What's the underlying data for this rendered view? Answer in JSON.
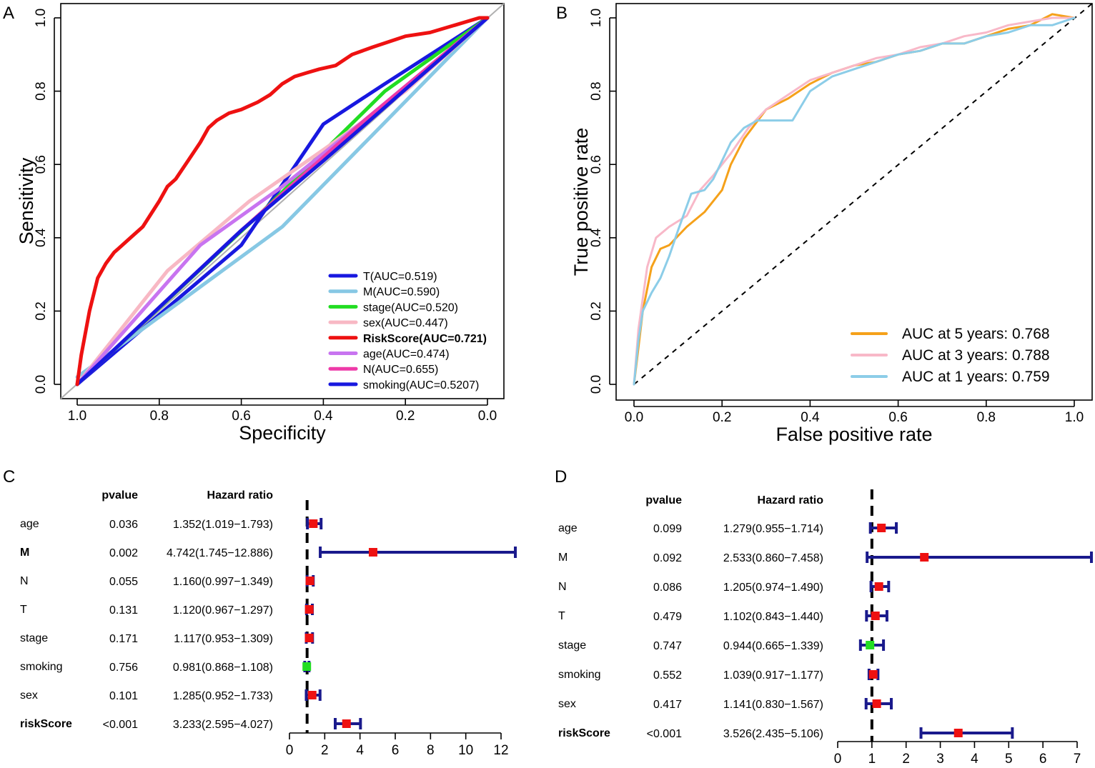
{
  "panels": {
    "A": {
      "letter": "A"
    },
    "B": {
      "letter": "B"
    },
    "C": {
      "letter": "C"
    },
    "D": {
      "letter": "D"
    }
  },
  "chart_data": [
    {
      "id": "A",
      "type": "line",
      "xlabel": "Specificity",
      "ylabel": "Sensitivity",
      "xlim": [
        1.0,
        0.0
      ],
      "ylim": [
        0.0,
        1.0
      ],
      "xticks": [
        "1.0",
        "0.8",
        "0.6",
        "0.4",
        "0.2",
        "0.0"
      ],
      "yticks": [
        "0.0",
        "0.2",
        "0.4",
        "0.6",
        "0.8",
        "1.0"
      ],
      "legend_position": "bottom-right",
      "series": [
        {
          "name": "T(AUC=0.519)",
          "color": "#1818e0",
          "bold": false,
          "x": [
            1.0,
            0.6,
            0.4,
            0.25,
            0.0
          ],
          "y": [
            0.0,
            0.38,
            0.71,
            0.82,
            1.0
          ]
        },
        {
          "name": "M(AUC=0.590)",
          "color": "#87c8e4",
          "bold": false,
          "x": [
            1.0,
            0.5,
            0.0
          ],
          "y": [
            0.02,
            0.43,
            1.0
          ]
        },
        {
          "name": "stage(AUC=0.520)",
          "color": "#22dd22",
          "bold": false,
          "x": [
            1.0,
            0.55,
            0.25,
            0.0
          ],
          "y": [
            0.0,
            0.47,
            0.8,
            1.0
          ]
        },
        {
          "name": "sex(AUC=0.447)",
          "color": "#f8b8c4",
          "bold": false,
          "x": [
            1.0,
            0.78,
            0.58,
            0.4,
            0.2,
            0.0
          ],
          "y": [
            0.0,
            0.31,
            0.5,
            0.64,
            0.8,
            1.0
          ]
        },
        {
          "name": "RiskScore(AUC=0.721)",
          "color": "#ee1111",
          "bold": true,
          "x": [
            1.0,
            0.99,
            0.97,
            0.95,
            0.93,
            0.91,
            0.9,
            0.87,
            0.84,
            0.8,
            0.78,
            0.76,
            0.73,
            0.7,
            0.68,
            0.66,
            0.63,
            0.6,
            0.56,
            0.53,
            0.5,
            0.47,
            0.44,
            0.41,
            0.37,
            0.33,
            0.28,
            0.2,
            0.14,
            0.08,
            0.02,
            0.0
          ],
          "y": [
            0.0,
            0.08,
            0.2,
            0.29,
            0.33,
            0.36,
            0.37,
            0.4,
            0.43,
            0.5,
            0.54,
            0.56,
            0.61,
            0.66,
            0.7,
            0.72,
            0.74,
            0.75,
            0.77,
            0.79,
            0.82,
            0.84,
            0.85,
            0.86,
            0.87,
            0.9,
            0.92,
            0.95,
            0.96,
            0.98,
            1.0,
            1.0
          ]
        },
        {
          "name": "age(AUC=0.474)",
          "color": "#c874f0",
          "bold": false,
          "x": [
            1.0,
            0.7,
            0.5,
            0.3,
            0.0
          ],
          "y": [
            0.0,
            0.38,
            0.54,
            0.72,
            1.0
          ]
        },
        {
          "name": "N(AUC=0.655)",
          "color": "#ee3aa8",
          "bold": false,
          "x": [
            1.0,
            0.6,
            0.3,
            0.0
          ],
          "y": [
            0.0,
            0.42,
            0.72,
            1.0
          ]
        },
        {
          "name": "smoking(AUC=0.5207)",
          "color": "#1818e0",
          "bold": false,
          "x": [
            1.0,
            0.6,
            0.4,
            0.0
          ],
          "y": [
            0.0,
            0.42,
            0.61,
            1.0
          ]
        }
      ]
    },
    {
      "id": "B",
      "type": "line",
      "xlabel": "False positive rate",
      "ylabel": "True positive rate",
      "xlim": [
        0.0,
        1.0
      ],
      "ylim": [
        0.0,
        1.0
      ],
      "xticks": [
        "0.0",
        "0.2",
        "0.4",
        "0.6",
        "0.8",
        "1.0"
      ],
      "yticks": [
        "0.0",
        "0.2",
        "0.4",
        "0.6",
        "0.8",
        "1.0"
      ],
      "legend_position": "bottom-right",
      "series": [
        {
          "name": "AUC at 5 years: 0.768",
          "color": "#f5a11a",
          "x": [
            0.0,
            0.01,
            0.02,
            0.04,
            0.06,
            0.08,
            0.12,
            0.16,
            0.2,
            0.22,
            0.25,
            0.3,
            0.35,
            0.4,
            0.45,
            0.5,
            0.55,
            0.6,
            0.65,
            0.7,
            0.75,
            0.8,
            0.85,
            0.9,
            0.95,
            1.0
          ],
          "y": [
            0.0,
            0.1,
            0.2,
            0.32,
            0.37,
            0.38,
            0.43,
            0.47,
            0.53,
            0.6,
            0.67,
            0.75,
            0.78,
            0.82,
            0.85,
            0.87,
            0.88,
            0.9,
            0.91,
            0.93,
            0.93,
            0.95,
            0.97,
            0.98,
            1.01,
            1.0
          ]
        },
        {
          "name": "AUC at 3 years: 0.788",
          "color": "#f8b8c8",
          "x": [
            0.0,
            0.01,
            0.03,
            0.05,
            0.08,
            0.12,
            0.15,
            0.18,
            0.22,
            0.26,
            0.3,
            0.35,
            0.4,
            0.45,
            0.5,
            0.55,
            0.6,
            0.65,
            0.7,
            0.75,
            0.8,
            0.85,
            0.9,
            0.95,
            1.0
          ],
          "y": [
            0.0,
            0.15,
            0.32,
            0.4,
            0.43,
            0.46,
            0.53,
            0.57,
            0.63,
            0.7,
            0.75,
            0.79,
            0.83,
            0.85,
            0.87,
            0.89,
            0.9,
            0.92,
            0.93,
            0.95,
            0.96,
            0.98,
            0.99,
            1.0,
            1.0
          ]
        },
        {
          "name": "AUC at 1 years: 0.759",
          "color": "#8ccde8",
          "x": [
            0.0,
            0.01,
            0.02,
            0.04,
            0.06,
            0.08,
            0.1,
            0.13,
            0.16,
            0.18,
            0.22,
            0.25,
            0.28,
            0.32,
            0.36,
            0.4,
            0.45,
            0.5,
            0.55,
            0.6,
            0.65,
            0.7,
            0.75,
            0.8,
            0.85,
            0.9,
            0.95,
            1.0
          ],
          "y": [
            0.0,
            0.12,
            0.2,
            0.25,
            0.29,
            0.35,
            0.42,
            0.52,
            0.53,
            0.56,
            0.66,
            0.7,
            0.72,
            0.72,
            0.72,
            0.8,
            0.84,
            0.86,
            0.88,
            0.9,
            0.91,
            0.93,
            0.93,
            0.95,
            0.96,
            0.98,
            0.98,
            1.0
          ]
        }
      ]
    },
    {
      "id": "C",
      "type": "forest",
      "headers": {
        "pvalue": "pvalue",
        "hr": "Hazard ratio"
      },
      "xlim": [
        0,
        12
      ],
      "xticks": [
        0,
        2,
        4,
        6,
        8,
        10,
        12
      ],
      "reference": 1,
      "rows": [
        {
          "label": "age",
          "bold": false,
          "pvalue": "0.036",
          "hr_text": "1.352(1.019−1.793)",
          "hr": 1.352,
          "lo": 1.019,
          "hi": 1.793
        },
        {
          "label": "M",
          "bold": true,
          "pvalue": "0.002",
          "hr_text": "4.742(1.745−12.886)",
          "hr": 4.742,
          "lo": 1.745,
          "hi": 12.886
        },
        {
          "label": "N",
          "bold": false,
          "pvalue": "0.055",
          "hr_text": "1.160(0.997−1.349)",
          "hr": 1.16,
          "lo": 0.997,
          "hi": 1.349
        },
        {
          "label": "T",
          "bold": false,
          "pvalue": "0.131",
          "hr_text": "1.120(0.967−1.297)",
          "hr": 1.12,
          "lo": 0.967,
          "hi": 1.297
        },
        {
          "label": "stage",
          "bold": false,
          "pvalue": "0.171",
          "hr_text": "1.117(0.953−1.309)",
          "hr": 1.117,
          "lo": 0.953,
          "hi": 1.309
        },
        {
          "label": "smoking",
          "bold": false,
          "pvalue": "0.756",
          "hr_text": "0.981(0.868−1.108)",
          "hr": 0.981,
          "lo": 0.868,
          "hi": 1.108
        },
        {
          "label": "sex",
          "bold": false,
          "pvalue": "0.101",
          "hr_text": "1.285(0.952−1.733)",
          "hr": 1.285,
          "lo": 0.952,
          "hi": 1.733
        },
        {
          "label": "riskScore",
          "bold": true,
          "pvalue": "<0.001",
          "hr_text": "3.233(2.595−4.027)",
          "hr": 3.233,
          "lo": 2.595,
          "hi": 4.027
        }
      ]
    },
    {
      "id": "D",
      "type": "forest",
      "headers": {
        "pvalue": "pvalue",
        "hr": "Hazard ratio"
      },
      "xlim": [
        0,
        7
      ],
      "xticks": [
        0,
        1,
        2,
        3,
        4,
        5,
        6,
        7
      ],
      "reference": 1,
      "rows": [
        {
          "label": "age",
          "bold": false,
          "pvalue": "0.099",
          "hr_text": "1.279(0.955−1.714)",
          "hr": 1.279,
          "lo": 0.955,
          "hi": 1.714
        },
        {
          "label": "M",
          "bold": false,
          "pvalue": "0.092",
          "hr_text": "2.533(0.860−7.458)",
          "hr": 2.533,
          "lo": 0.86,
          "hi": 7.458
        },
        {
          "label": "N",
          "bold": false,
          "pvalue": "0.086",
          "hr_text": "1.205(0.974−1.490)",
          "hr": 1.205,
          "lo": 0.974,
          "hi": 1.49
        },
        {
          "label": "T",
          "bold": false,
          "pvalue": "0.479",
          "hr_text": "1.102(0.843−1.440)",
          "hr": 1.102,
          "lo": 0.843,
          "hi": 1.44
        },
        {
          "label": "stage",
          "bold": false,
          "pvalue": "0.747",
          "hr_text": "0.944(0.665−1.339)",
          "hr": 0.944,
          "lo": 0.665,
          "hi": 1.339
        },
        {
          "label": "smoking",
          "bold": false,
          "pvalue": "0.552",
          "hr_text": "1.039(0.917−1.177)",
          "hr": 1.039,
          "lo": 0.917,
          "hi": 1.177
        },
        {
          "label": "sex",
          "bold": false,
          "pvalue": "0.417",
          "hr_text": "1.141(0.830−1.567)",
          "hr": 1.141,
          "lo": 0.83,
          "hi": 1.567
        },
        {
          "label": "riskScore",
          "bold": true,
          "pvalue": "<0.001",
          "hr_text": "3.526(2.435−5.106)",
          "hr": 3.526,
          "lo": 2.435,
          "hi": 5.106
        }
      ]
    }
  ],
  "colors": {
    "hr_above_one": "#ee1111",
    "hr_below_one": "#22dd22",
    "ci_line": "#1a1a8c",
    "reference_line": "#000000",
    "diagonal": "#000000"
  }
}
